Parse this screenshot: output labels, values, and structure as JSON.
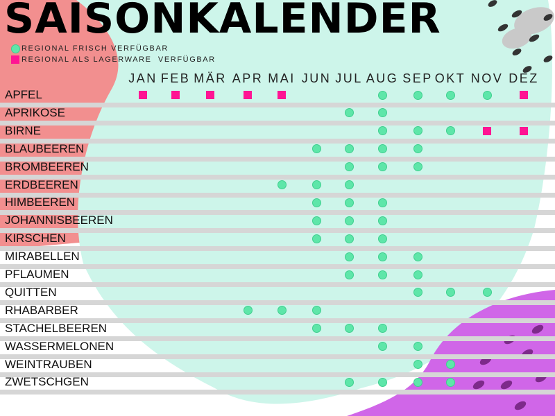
{
  "title": "SAISONKALENDER",
  "legend": {
    "fresh": "REGIONAL FRISCH VERFÜGBAR",
    "storage": "REGIONAL ALS LAGERWARE  VERFÜGBAR"
  },
  "colors": {
    "fresh": "#5ee6a9",
    "storage": "#ff1493",
    "blob_red": "#f28f8f",
    "blob_mint": "#cdf5ea",
    "blob_purple": "#d066e8",
    "band": "#d6d6d6"
  },
  "icons": {
    "fresh": "circle",
    "storage": "square"
  },
  "months": [
    "JAN",
    "FEB",
    "MÄR",
    "APR",
    "MAI",
    "JUN",
    "JUL",
    "AUG",
    "SEP",
    "OKT",
    "NOV",
    "DEZ"
  ],
  "rows": [
    {
      "name": "APFEL",
      "fresh": [
        "AUG",
        "SEP",
        "OKT",
        "NOV"
      ],
      "storage": [
        "JAN",
        "FEB",
        "MÄR",
        "APR",
        "MAI",
        "DEZ"
      ]
    },
    {
      "name": "APRIKOSE",
      "fresh": [
        "JUL",
        "AUG"
      ],
      "storage": []
    },
    {
      "name": "BIRNE",
      "fresh": [
        "AUG",
        "SEP",
        "OKT"
      ],
      "storage": [
        "NOV",
        "DEZ"
      ]
    },
    {
      "name": "BLAUBEEREN",
      "fresh": [
        "JUN",
        "JUL",
        "AUG",
        "SEP"
      ],
      "storage": []
    },
    {
      "name": "BROMBEEREN",
      "fresh": [
        "JUL",
        "AUG",
        "SEP"
      ],
      "storage": []
    },
    {
      "name": "ERDBEEREN",
      "fresh": [
        "MAI",
        "JUN",
        "JUL"
      ],
      "storage": []
    },
    {
      "name": "HIMBEEREN",
      "fresh": [
        "JUN",
        "JUL",
        "AUG"
      ],
      "storage": []
    },
    {
      "name": "JOHANNISBEEREN",
      "fresh": [
        "JUN",
        "JUL",
        "AUG"
      ],
      "storage": []
    },
    {
      "name": "KIRSCHEN",
      "fresh": [
        "JUN",
        "JUL",
        "AUG"
      ],
      "storage": []
    },
    {
      "name": "MIRABELLEN",
      "fresh": [
        "JUL",
        "AUG",
        "SEP"
      ],
      "storage": []
    },
    {
      "name": "PFLAUMEN",
      "fresh": [
        "JUL",
        "AUG",
        "SEP"
      ],
      "storage": []
    },
    {
      "name": "QUITTEN",
      "fresh": [
        "SEP",
        "OKT",
        "NOV"
      ],
      "storage": []
    },
    {
      "name": "RHABARBER",
      "fresh": [
        "APR",
        "MAI",
        "JUN"
      ],
      "storage": []
    },
    {
      "name": "STACHELBEEREN",
      "fresh": [
        "JUN",
        "JUL",
        "AUG"
      ],
      "storage": []
    },
    {
      "name": "WASSERMELONEN",
      "fresh": [
        "AUG",
        "SEP"
      ],
      "storage": []
    },
    {
      "name": "WEINTRAUBEN",
      "fresh": [
        "SEP",
        "OKT"
      ],
      "storage": []
    },
    {
      "name": "ZWETSCHGEN",
      "fresh": [
        "JUL",
        "AUG",
        "SEP",
        "OKT"
      ],
      "storage": []
    }
  ]
}
